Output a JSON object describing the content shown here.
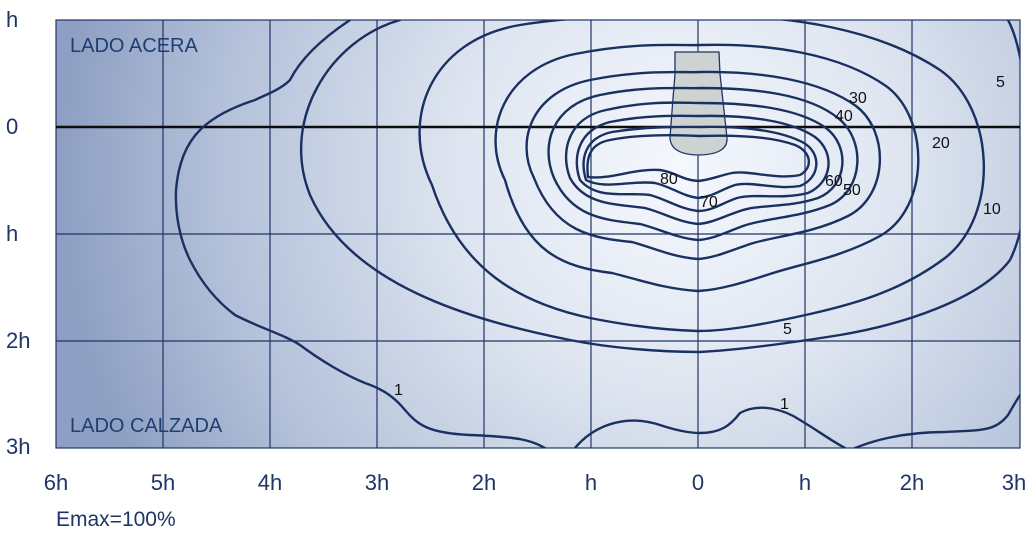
{
  "diagram": {
    "region_top_label": "LADO ACERA",
    "region_bottom_label": "LADO CALZADA",
    "y_ticks": [
      "h",
      "0",
      "h",
      "2h",
      "3h"
    ],
    "x_ticks": [
      "6h",
      "5h",
      "4h",
      "3h",
      "2h",
      "h",
      "0",
      "h",
      "2h",
      "3h"
    ],
    "contour_labels": [
      "80",
      "70",
      "60",
      "50",
      "40",
      "30",
      "20",
      "10",
      "5",
      "5",
      "1",
      "1"
    ],
    "footer_note": "Emax=100%",
    "colors": {
      "ink": "#1e3566",
      "label_blue": "#1f3f72",
      "panel_center": "#f4f7fc",
      "panel_edge": "#94a5c7",
      "luminaire_fill": "#cdd3d2"
    }
  }
}
